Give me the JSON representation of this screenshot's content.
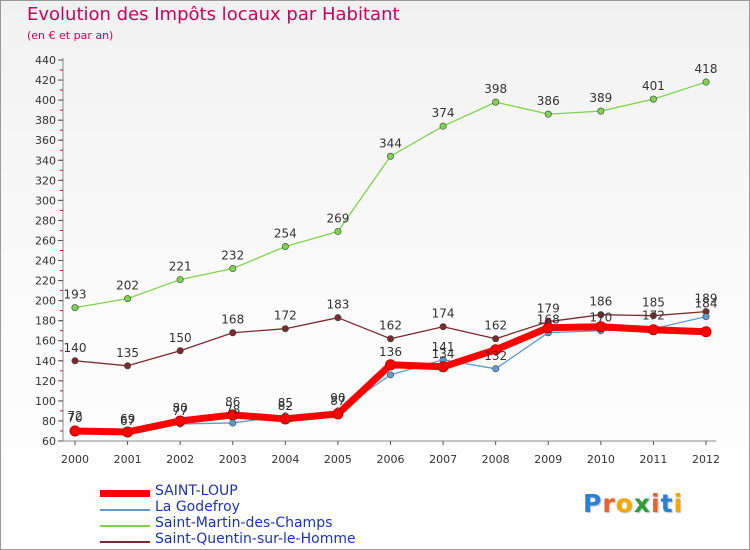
{
  "title": "Evolution des Impôts locaux par Habitant",
  "subtitle": "(en € et par an)",
  "brand": {
    "text": "Proxiti",
    "letter_colors": [
      "#2b7fd6",
      "#e9622b",
      "#f4a900",
      "#2d9e3a",
      "#e9622b",
      "#2b7fd6",
      "#f4a900"
    ]
  },
  "chart_data": {
    "type": "line",
    "x": [
      "2000",
      "2001",
      "2002",
      "2003",
      "2004",
      "2005",
      "2006",
      "2007",
      "2008",
      "2009",
      "2010",
      "2011",
      "2012"
    ],
    "y_ticks": [
      "60",
      "80",
      "100",
      "120",
      "140",
      "160",
      "180",
      "200",
      "220",
      "240",
      "260",
      "280",
      "300",
      "320",
      "340",
      "360",
      "380",
      "400",
      "420",
      "440"
    ],
    "ylim": [
      60,
      440
    ],
    "grid": false,
    "legend_position": "bottom-left",
    "series": [
      {
        "name": "SAINT-LOUP",
        "color": "#ff0000",
        "values": [
          70,
          69,
          80,
          86,
          82,
          87,
          136,
          134,
          151,
          173,
          174,
          171,
          169
        ],
        "labels": [
          "70",
          "69",
          "80",
          "86",
          "82",
          "87",
          "136",
          "134",
          "",
          "",
          "",
          "",
          ""
        ]
      },
      {
        "name": "La Godefroy",
        "color": "#5f9bd1",
        "values": [
          72,
          67,
          77,
          78,
          85,
          90,
          126,
          141,
          132,
          168,
          170,
          172,
          184
        ],
        "labels": [
          "72",
          "67",
          "77",
          "78",
          "85",
          "90",
          "",
          "141",
          "132",
          "168",
          "170",
          "172",
          "184"
        ]
      },
      {
        "name": "Saint-Martin-des-Champs",
        "color": "#7fd34e",
        "values": [
          193,
          202,
          221,
          232,
          254,
          269,
          344,
          374,
          398,
          386,
          389,
          401,
          418
        ],
        "labels": [
          "193",
          "202",
          "221",
          "232",
          "254",
          "269",
          "344",
          "374",
          "398",
          "386",
          "389",
          "401",
          "418"
        ]
      },
      {
        "name": "Saint-Quentin-sur-le-Homme",
        "color": "#7a2a30",
        "values": [
          140,
          135,
          150,
          168,
          172,
          183,
          162,
          174,
          162,
          179,
          186,
          185,
          189
        ],
        "labels": [
          "140",
          "135",
          "150",
          "168",
          "172",
          "183",
          "162",
          "174",
          "162",
          "179",
          "186",
          "185",
          "189"
        ]
      }
    ]
  }
}
